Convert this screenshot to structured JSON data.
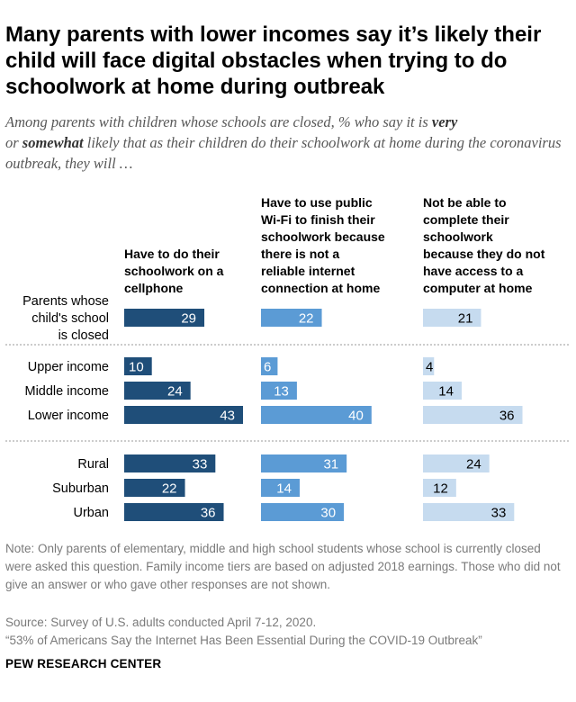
{
  "header": {
    "title": "Many parents with lower incomes say it’s likely their child will face digital obstacles when trying to do schoolwork at home during outbreak",
    "subtitle_pre": "Among parents with children whose schools are closed, % who say it is ",
    "subtitle_very": "very",
    "subtitle_or": "or ",
    "subtitle_somewhat": "somewhat",
    "subtitle_post": " likely that as their children do their schoolwork at home during the coronavirus outbreak, they will …"
  },
  "chart_data": {
    "type": "bar",
    "orientation": "horizontal",
    "colors": [
      "#1f4e79",
      "#5b9bd5",
      "#c6dbef"
    ],
    "value_label_colors": [
      "#ffffff",
      "#ffffff",
      "#000000"
    ],
    "xlim": [
      0,
      50
    ],
    "categories": [
      "Parents whose child's school is closed",
      "Upper income",
      "Middle income",
      "Lower income",
      "Rural",
      "Suburban",
      "Urban"
    ],
    "series": [
      {
        "name": "Have to do their schoolwork on a cellphone",
        "values": [
          29,
          10,
          24,
          43,
          33,
          22,
          36
        ]
      },
      {
        "name": "Have to use public Wi-Fi to finish their schoolwork because there is not a reliable internet connection at home",
        "values": [
          22,
          6,
          13,
          40,
          31,
          14,
          30
        ]
      },
      {
        "name": "Not be able to complete their schoolwork because they do not have access to a computer at home",
        "values": [
          21,
          4,
          14,
          36,
          24,
          12,
          33
        ]
      }
    ]
  },
  "footer": {
    "note": "Note: Only parents of elementary, middle and high school students whose school is currently closed were asked this question. Family income tiers are based on adjusted 2018 earnings. Those who did not give an answer or who gave other responses are not shown.",
    "source": "Source: Survey of U.S. adults conducted April 7-12, 2020.",
    "report": "“53% of Americans Say the Internet Has Been Essential During the COVID-19 Outbreak”",
    "brand": "PEW RESEARCH CENTER"
  }
}
